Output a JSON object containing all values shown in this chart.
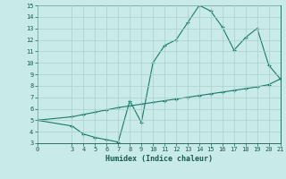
{
  "xlabel": "Humidex (Indice chaleur)",
  "xlim": [
    0,
    21
  ],
  "ylim": [
    3,
    15
  ],
  "yticks": [
    3,
    4,
    5,
    6,
    7,
    8,
    9,
    10,
    11,
    12,
    13,
    14,
    15
  ],
  "xticks": [
    0,
    3,
    4,
    5,
    6,
    7,
    8,
    9,
    10,
    11,
    12,
    13,
    14,
    15,
    16,
    17,
    18,
    19,
    20,
    21
  ],
  "line1_x": [
    0,
    3,
    4,
    5,
    6,
    7,
    8,
    9,
    10,
    11,
    12,
    13,
    14,
    15,
    16,
    17,
    18,
    19,
    20,
    21
  ],
  "line1_y": [
    5.0,
    4.5,
    3.8,
    3.5,
    3.3,
    3.1,
    6.7,
    4.8,
    10.0,
    11.5,
    12.0,
    13.5,
    15.0,
    14.5,
    13.1,
    11.1,
    12.2,
    13.0,
    9.8,
    8.6
  ],
  "line2_x": [
    0,
    3,
    4,
    5,
    6,
    7,
    8,
    9,
    10,
    11,
    12,
    13,
    14,
    15,
    16,
    17,
    18,
    19,
    20,
    21
  ],
  "line2_y": [
    5.0,
    5.3,
    5.5,
    5.7,
    5.9,
    6.1,
    6.25,
    6.4,
    6.55,
    6.7,
    6.85,
    7.0,
    7.15,
    7.3,
    7.45,
    7.6,
    7.75,
    7.9,
    8.1,
    8.6
  ],
  "line_color": "#1a7a6a",
  "bg_color": "#c8eae8",
  "grid_color": "#aacfcc"
}
